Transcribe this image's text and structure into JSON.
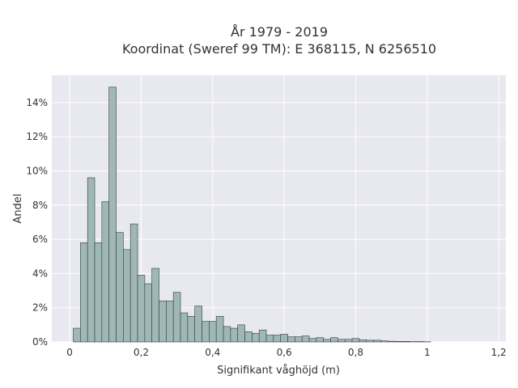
{
  "chart_data": {
    "type": "bar",
    "title": "År 1979 - 2019",
    "subtitle": "Koordinat (Sweref 99 TM): E 368115, N 6256510",
    "xlabel": "Signifikant våghöjd (m)",
    "ylabel": "Andel",
    "xlim": [
      -0.05,
      1.22
    ],
    "ylim": [
      0,
      15.6
    ],
    "x_ticks": [
      0,
      0.2,
      0.4,
      0.6,
      0.8,
      1.0,
      1.2
    ],
    "x_tick_labels": [
      "0",
      "0,2",
      "0,4",
      "0,6",
      "0,8",
      "1",
      "1,2"
    ],
    "y_ticks": [
      0,
      2,
      4,
      6,
      8,
      10,
      12,
      14
    ],
    "y_tick_labels": [
      "0%",
      "2%",
      "4%",
      "6%",
      "8%",
      "10%",
      "12%",
      "14%"
    ],
    "grid": true,
    "bin_width": 0.02,
    "bin_start": 0.01,
    "values": [
      0.8,
      5.8,
      9.6,
      5.8,
      8.2,
      14.9,
      6.4,
      5.4,
      6.9,
      3.9,
      3.4,
      4.3,
      2.4,
      2.4,
      2.9,
      1.7,
      1.5,
      2.1,
      1.2,
      1.2,
      1.5,
      0.9,
      0.8,
      1.0,
      0.6,
      0.5,
      0.7,
      0.4,
      0.4,
      0.45,
      0.3,
      0.3,
      0.35,
      0.2,
      0.25,
      0.15,
      0.25,
      0.15,
      0.15,
      0.2,
      0.12,
      0.1,
      0.1,
      0.06,
      0.04,
      0.03,
      0.03,
      0.02,
      0.02,
      0.01,
      0.0,
      0.0
    ],
    "colors": {
      "bar_fill": "#9fb7b6",
      "bar_edge": "#333c3a",
      "plot_bg": "#e8e8f0",
      "grid": "#ffffff",
      "text": "#333333"
    }
  }
}
